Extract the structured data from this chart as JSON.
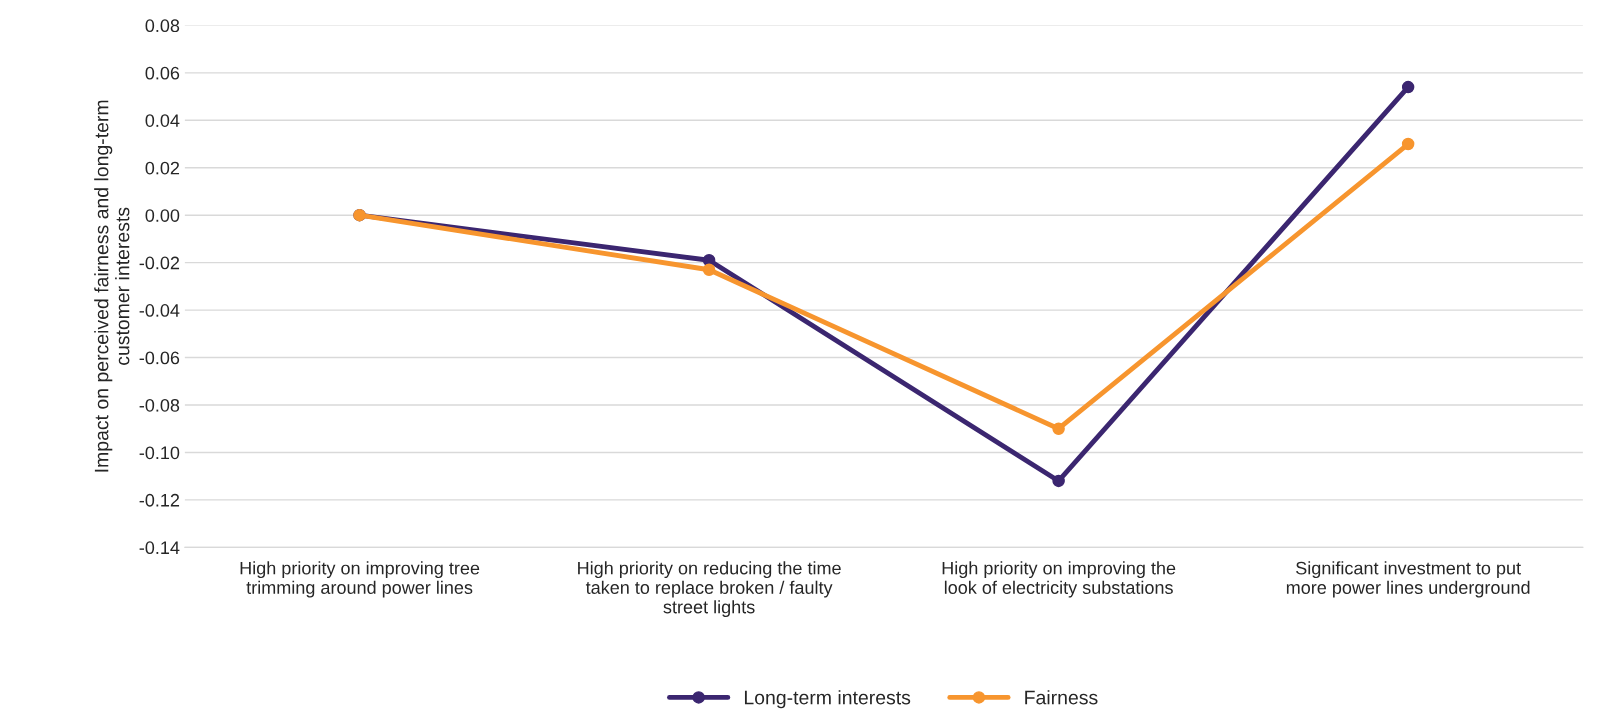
{
  "chart_data": {
    "type": "line",
    "ylabel": "Impact on perceived fairness and long-term\ncustomer interests",
    "categories": [
      "High priority on improving tree\ntrimming around power lines",
      "High priority on reducing the time\ntaken to replace broken / faulty\nstreet lights",
      "High priority on improving the\nlook of electricity substations",
      "Significant investment to put\nmore power lines underground"
    ],
    "series": [
      {
        "name": "Long-term interests",
        "color": "#3b2670",
        "values": [
          0.0,
          -0.019,
          -0.112,
          0.054
        ]
      },
      {
        "name": "Fairness",
        "color": "#f7952e",
        "values": [
          0.0,
          -0.023,
          -0.09,
          0.03
        ]
      }
    ],
    "ylim": [
      -0.14,
      0.08
    ],
    "yticks": [
      {
        "value": -0.14,
        "label": "-0.14"
      },
      {
        "value": -0.12,
        "label": "-0.12"
      },
      {
        "value": -0.1,
        "label": "-0.10"
      },
      {
        "value": -0.08,
        "label": "-0.08"
      },
      {
        "value": -0.06,
        "label": "-0.06"
      },
      {
        "value": -0.04,
        "label": "-0.04"
      },
      {
        "value": -0.02,
        "label": "-0.02"
      },
      {
        "value": 0,
        "label": "0.00"
      },
      {
        "value": 0.02,
        "label": "0.02"
      },
      {
        "value": 0.04,
        "label": "0.04"
      },
      {
        "value": 0.06,
        "label": "0.06"
      },
      {
        "value": 0.08,
        "label": "0.08"
      }
    ],
    "grid": "y",
    "legend": "bottom",
    "marker": "circle",
    "line_style": "solid"
  }
}
